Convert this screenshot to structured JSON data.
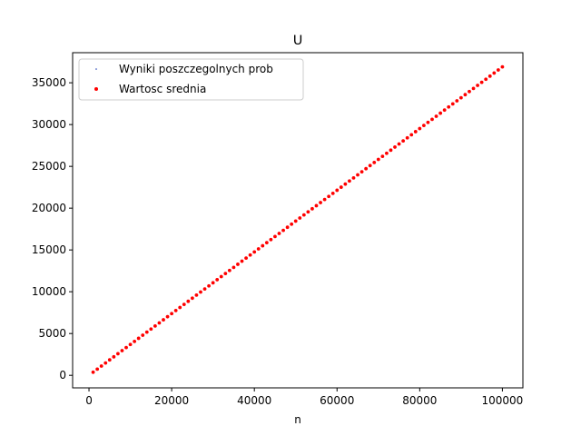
{
  "chart_data": {
    "type": "scatter",
    "title": "U",
    "xlabel": "n",
    "ylabel": "",
    "xlim": [
      -3960,
      104960
    ],
    "ylim": [
      -1500,
      38600
    ],
    "xticks": [
      0,
      20000,
      40000,
      60000,
      80000,
      100000
    ],
    "xtick_labels": [
      "0",
      "20000",
      "40000",
      "60000",
      "80000",
      "100000"
    ],
    "yticks": [
      0,
      5000,
      10000,
      15000,
      20000,
      25000,
      30000,
      35000
    ],
    "ytick_labels": [
      "0",
      "5000",
      "10000",
      "15000",
      "20000",
      "25000",
      "30000",
      "35000"
    ],
    "grid": false,
    "legend_position": "upper-left",
    "x_range": {
      "start": 1000,
      "end": 100000,
      "step": 1000
    },
    "series": [
      {
        "name": "Wyniki poszczegolnych prob",
        "marker": "dot",
        "color": "#1f3fb4",
        "y_at_start": 370,
        "y_at_end": 36900
      },
      {
        "name": "Wartosc srednia",
        "marker": "circle",
        "color": "#ff0000",
        "y_at_start": 370,
        "y_at_end": 36900
      }
    ]
  }
}
